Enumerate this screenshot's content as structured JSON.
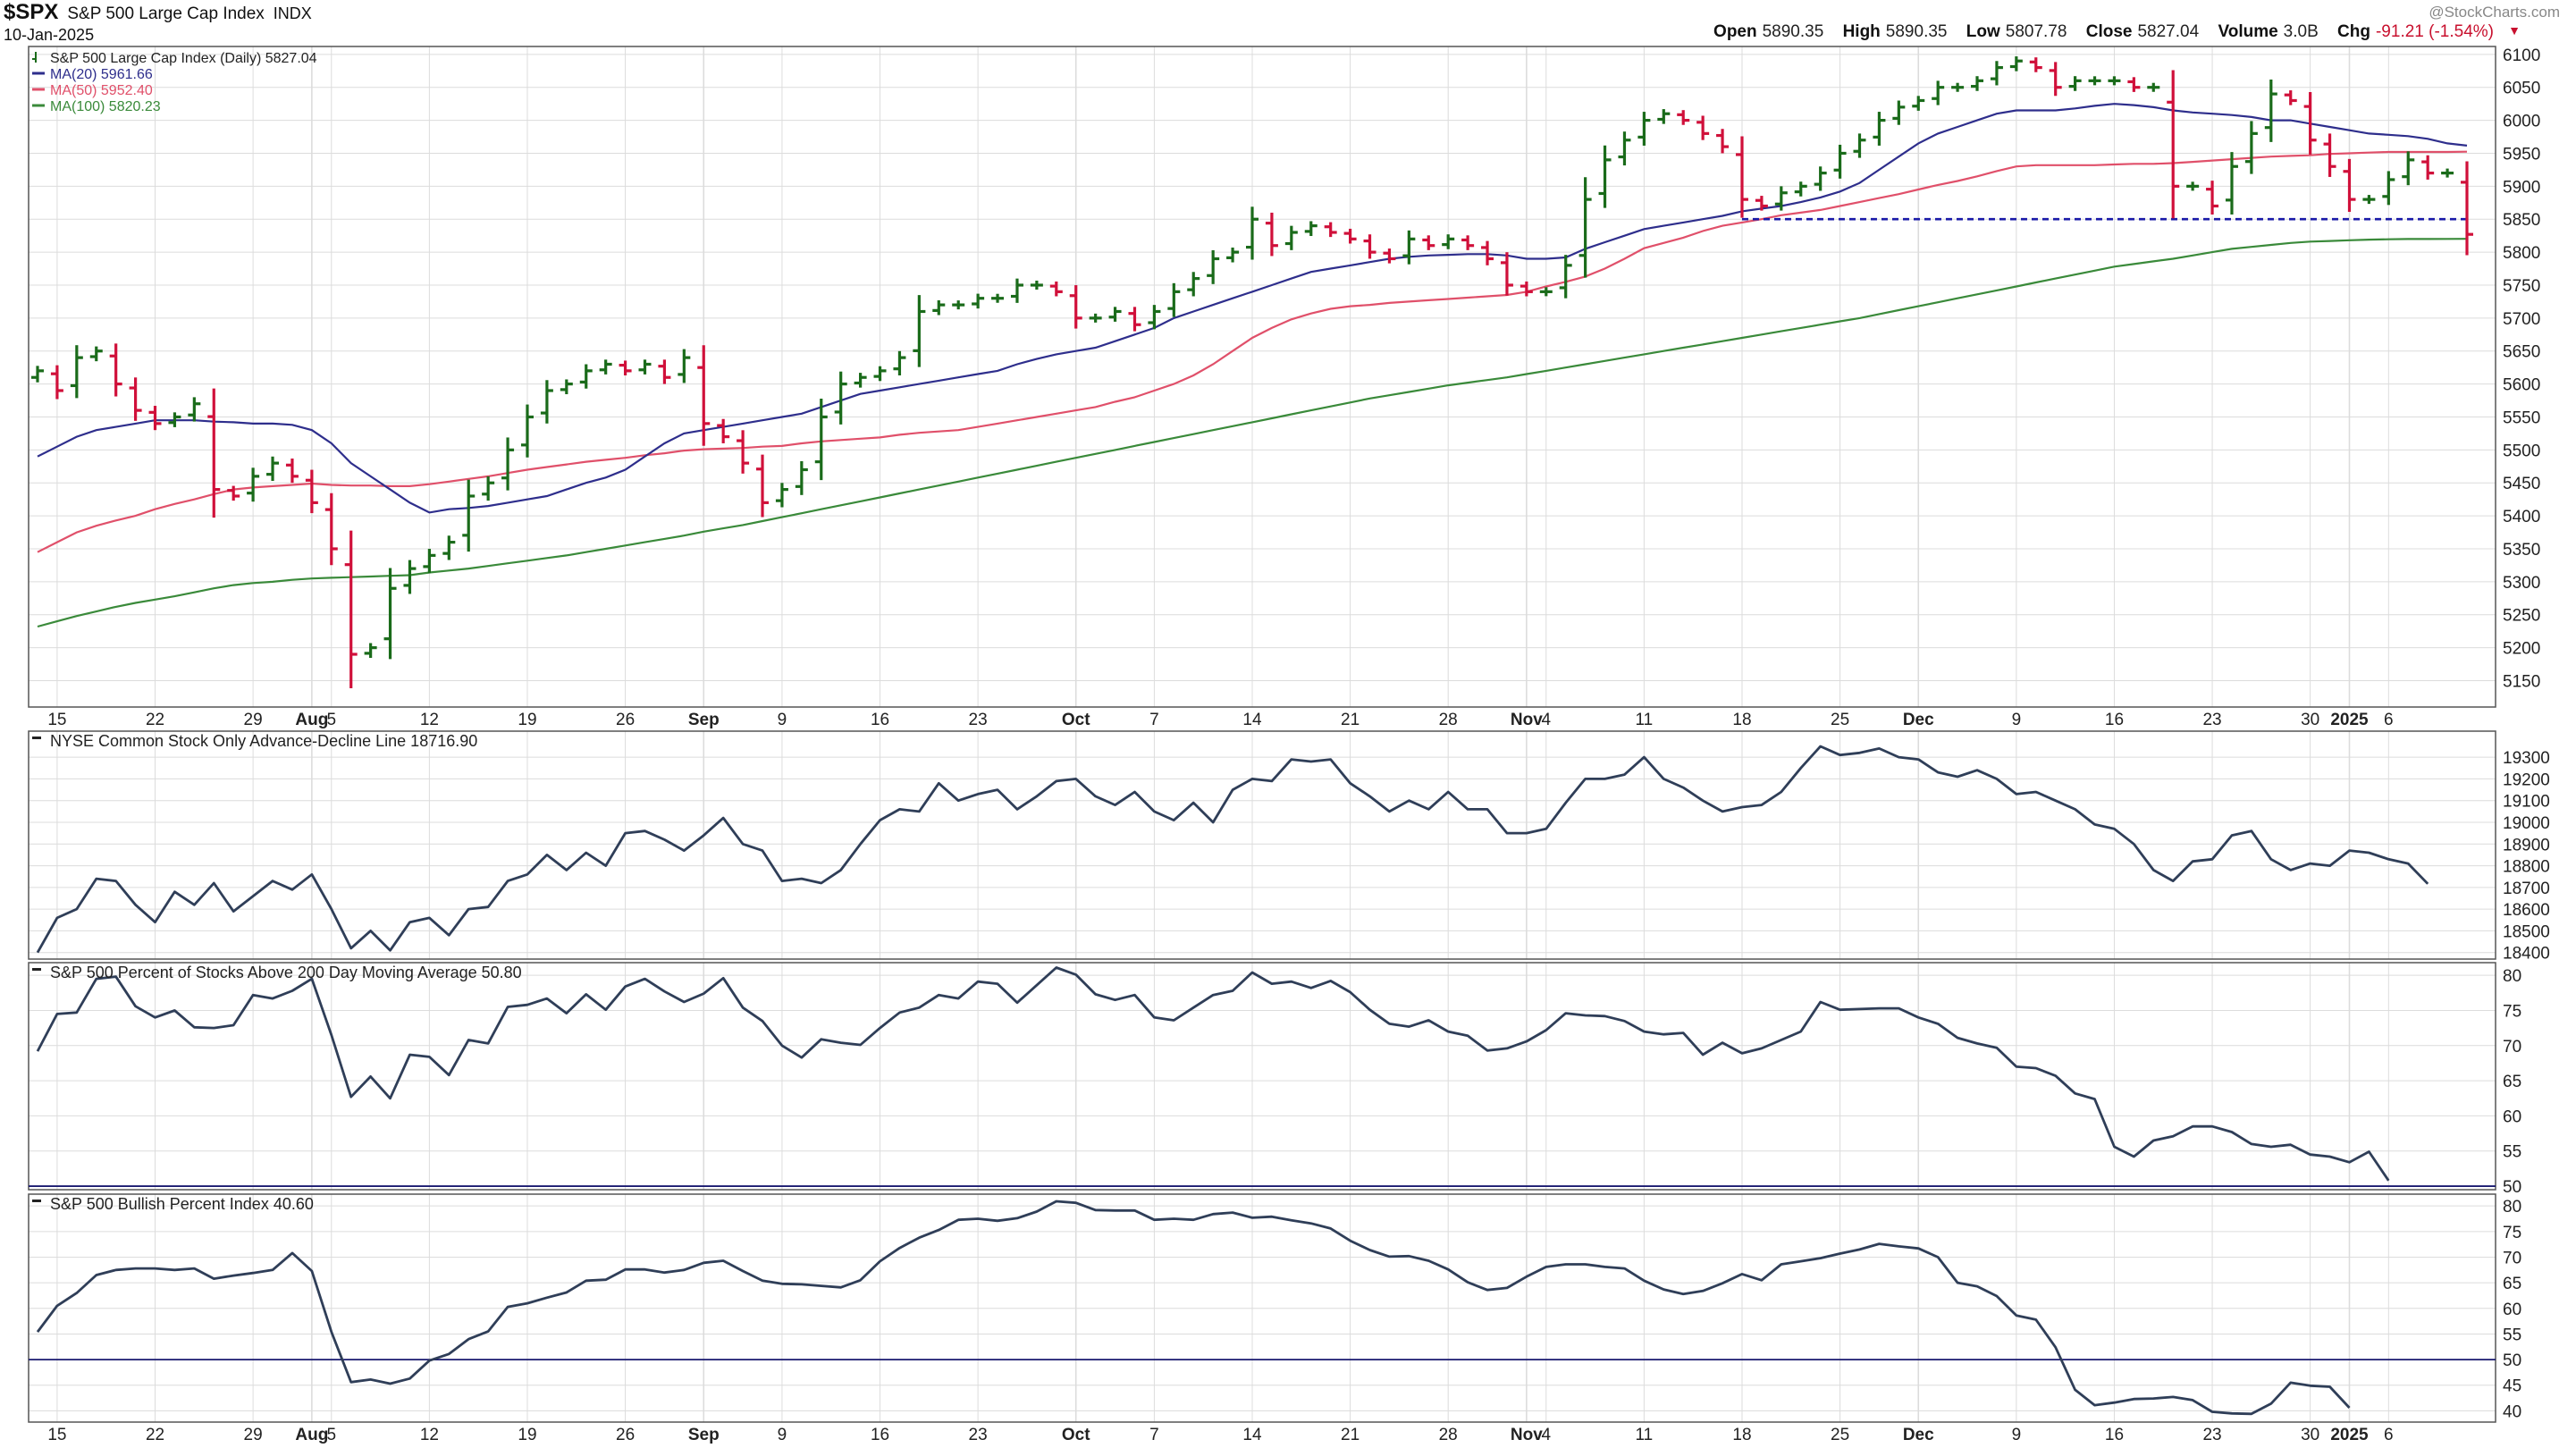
{
  "header": {
    "symbol": "$SPX",
    "name": "S&P 500 Large Cap Index",
    "exchange": "INDX",
    "date": "10-Jan-2025",
    "brand": "@StockCharts.com",
    "open_label": "Open",
    "open": "5890.35",
    "high_label": "High",
    "high": "5890.35",
    "low_label": "Low",
    "low": "5807.78",
    "close_label": "Close",
    "close": "5827.04",
    "volume_label": "Volume",
    "volume": "3.0B",
    "chg_label": "Chg",
    "chg": "-91.21 (-1.54%)",
    "chg_arrow": "▼"
  },
  "colors": {
    "up": "#1a6b1a",
    "down": "#d0103a",
    "ma20": "#2e2e8c",
    "ma50": "#e0506a",
    "ma100": "#3a8a3a",
    "indicator": "#2f3e58",
    "support": "#1a1aa8",
    "grid": "#dcdcdc"
  },
  "x_axis_ticks": [
    {
      "label": "15",
      "i": 1
    },
    {
      "label": "22",
      "i": 6
    },
    {
      "label": "29",
      "i": 11
    },
    {
      "label": "Aug",
      "i": 14,
      "major": true
    },
    {
      "label": "5",
      "i": 15
    },
    {
      "label": "12",
      "i": 20
    },
    {
      "label": "19",
      "i": 25
    },
    {
      "label": "26",
      "i": 30
    },
    {
      "label": "Sep",
      "i": 34,
      "major": true
    },
    {
      "label": "9",
      "i": 38
    },
    {
      "label": "16",
      "i": 43
    },
    {
      "label": "23",
      "i": 48
    },
    {
      "label": "Oct",
      "i": 53,
      "major": true
    },
    {
      "label": "7",
      "i": 57
    },
    {
      "label": "14",
      "i": 62
    },
    {
      "label": "21",
      "i": 67
    },
    {
      "label": "28",
      "i": 72
    },
    {
      "label": "Nov",
      "i": 76,
      "major": true
    },
    {
      "label": "4",
      "i": 77
    },
    {
      "label": "11",
      "i": 82
    },
    {
      "label": "18",
      "i": 87
    },
    {
      "label": "25",
      "i": 92
    },
    {
      "label": "Dec",
      "i": 96,
      "major": true
    },
    {
      "label": "9",
      "i": 101
    },
    {
      "label": "16",
      "i": 106
    },
    {
      "label": "23",
      "i": 111
    },
    {
      "label": "30",
      "i": 116
    },
    {
      "label": "2025",
      "i": 118,
      "major": true
    },
    {
      "label": "6",
      "i": 120
    }
  ],
  "chart_data": [
    {
      "type": "ohlc",
      "title": "S&P 500 Large Cap Index (Daily) 5827.04",
      "legend": [
        {
          "name": "S&P 500 Large Cap Index (Daily) 5827.04",
          "color": "#1a6b1a",
          "style": "bar"
        },
        {
          "name": "MA(20) 5961.66",
          "color": "#2e2e8c"
        },
        {
          "name": "MA(50) 5952.40",
          "color": "#e0506a"
        },
        {
          "name": "MA(100) 5820.23",
          "color": "#3a8a3a"
        }
      ],
      "ylim": [
        5110,
        6112
      ],
      "yticks": [
        5150,
        5200,
        5250,
        5300,
        5350,
        5400,
        5450,
        5500,
        5550,
        5600,
        5650,
        5700,
        5750,
        5800,
        5850,
        5900,
        5950,
        6000,
        6050,
        6100
      ],
      "support_level": 5850,
      "support_range": [
        87,
        124
      ],
      "close": [
        5620,
        5590,
        5640,
        5650,
        5600,
        5560,
        5540,
        5550,
        5570,
        5440,
        5430,
        5460,
        5480,
        5460,
        5420,
        5350,
        5190,
        5200,
        5290,
        5320,
        5340,
        5360,
        5430,
        5450,
        5500,
        5550,
        5590,
        5600,
        5620,
        5630,
        5620,
        5630,
        5610,
        5640,
        5540,
        5520,
        5480,
        5420,
        5440,
        5470,
        5550,
        5600,
        5610,
        5620,
        5640,
        5710,
        5720,
        5720,
        5730,
        5730,
        5750,
        5750,
        5740,
        5700,
        5700,
        5710,
        5690,
        5710,
        5740,
        5760,
        5790,
        5800,
        5850,
        5810,
        5830,
        5840,
        5830,
        5820,
        5800,
        5790,
        5820,
        5810,
        5820,
        5810,
        5790,
        5750,
        5740,
        5740,
        5780,
        5880,
        5940,
        5970,
        6000,
        6010,
        6000,
        5980,
        5960,
        5880,
        5870,
        5890,
        5900,
        5920,
        5950,
        5970,
        6000,
        6020,
        6030,
        6050,
        6050,
        6060,
        6080,
        6090,
        6080,
        6050,
        6060,
        6060,
        6060,
        6050,
        6050,
        5900,
        5900,
        5870,
        5930,
        5980,
        6040,
        6030,
        5970,
        5930,
        5880,
        5880,
        5910,
        5940,
        5920,
        5920,
        5827
      ],
      "ma20": [
        5490,
        5505,
        5520,
        5530,
        5535,
        5540,
        5545,
        5545,
        5545,
        5543,
        5542,
        5540,
        5540,
        5538,
        5530,
        5510,
        5480,
        5460,
        5440,
        5420,
        5405,
        5410,
        5412,
        5415,
        5420,
        5425,
        5430,
        5440,
        5450,
        5458,
        5470,
        5490,
        5510,
        5525,
        5530,
        5535,
        5540,
        5545,
        5550,
        5555,
        5565,
        5575,
        5585,
        5590,
        5595,
        5600,
        5605,
        5610,
        5615,
        5620,
        5630,
        5638,
        5645,
        5650,
        5655,
        5665,
        5675,
        5685,
        5700,
        5710,
        5720,
        5730,
        5740,
        5750,
        5760,
        5770,
        5775,
        5780,
        5785,
        5790,
        5793,
        5795,
        5796,
        5797,
        5797,
        5795,
        5790,
        5790,
        5792,
        5805,
        5815,
        5825,
        5835,
        5840,
        5845,
        5850,
        5855,
        5862,
        5866,
        5870,
        5876,
        5883,
        5892,
        5905,
        5925,
        5945,
        5965,
        5980,
        5990,
        6000,
        6010,
        6015,
        6015,
        6015,
        6018,
        6022,
        6025,
        6023,
        6020,
        6015,
        6012,
        6010,
        6008,
        6005,
        6000,
        6000,
        5995,
        5990,
        5985,
        5980,
        5978,
        5976,
        5972,
        5965,
        5961.66
      ],
      "ma50": [
        5345,
        5360,
        5375,
        5385,
        5393,
        5400,
        5410,
        5418,
        5425,
        5433,
        5440,
        5443,
        5445,
        5447,
        5449,
        5447,
        5446,
        5446,
        5445,
        5445,
        5448,
        5452,
        5456,
        5460,
        5465,
        5470,
        5474,
        5478,
        5482,
        5485,
        5488,
        5492,
        5495,
        5499,
        5501,
        5502,
        5503,
        5505,
        5506,
        5510,
        5513,
        5515,
        5517,
        5519,
        5523,
        5526,
        5528,
        5530,
        5535,
        5540,
        5545,
        5550,
        5555,
        5560,
        5565,
        5573,
        5580,
        5590,
        5600,
        5613,
        5630,
        5650,
        5670,
        5685,
        5698,
        5707,
        5714,
        5718,
        5720,
        5723,
        5725,
        5727,
        5729,
        5731,
        5733,
        5735,
        5740,
        5748,
        5755,
        5763,
        5775,
        5790,
        5806,
        5814,
        5822,
        5832,
        5840,
        5845,
        5850,
        5856,
        5860,
        5864,
        5870,
        5876,
        5882,
        5888,
        5895,
        5902,
        5908,
        5915,
        5923,
        5930,
        5932,
        5932,
        5932,
        5932,
        5933,
        5934,
        5934,
        5935,
        5937,
        5939,
        5941,
        5943,
        5945,
        5946,
        5947,
        5949,
        5950,
        5951,
        5952,
        5952,
        5952,
        5952,
        5952.4
      ],
      "ma100": [
        5232,
        5240,
        5248,
        5255,
        5262,
        5268,
        5273,
        5278,
        5284,
        5290,
        5295,
        5298,
        5300,
        5303,
        5305,
        5306,
        5307,
        5308,
        5309,
        5310,
        5314,
        5317,
        5320,
        5324,
        5328,
        5332,
        5336,
        5340,
        5345,
        5350,
        5355,
        5360,
        5365,
        5370,
        5376,
        5381,
        5386,
        5392,
        5398,
        5404,
        5410,
        5416,
        5422,
        5428,
        5434,
        5440,
        5446,
        5452,
        5458,
        5464,
        5470,
        5476,
        5482,
        5488,
        5494,
        5500,
        5506,
        5512,
        5518,
        5524,
        5530,
        5536,
        5542,
        5548,
        5554,
        5560,
        5566,
        5572,
        5578,
        5583,
        5588,
        5593,
        5598,
        5602,
        5606,
        5610,
        5615,
        5620,
        5625,
        5630,
        5635,
        5640,
        5645,
        5650,
        5655,
        5660,
        5665,
        5670,
        5675,
        5680,
        5685,
        5690,
        5695,
        5700,
        5706,
        5712,
        5718,
        5724,
        5730,
        5736,
        5742,
        5748,
        5754,
        5760,
        5766,
        5772,
        5778,
        5782,
        5786,
        5790,
        5795,
        5800,
        5805,
        5808,
        5811,
        5814,
        5816,
        5817,
        5818,
        5819,
        5819.5,
        5820,
        5820,
        5820.1,
        5820.23
      ]
    },
    {
      "type": "line",
      "title": "NYSE Common Stock Only Advance-Decline Line 18716.90",
      "ylim": [
        18370,
        19420
      ],
      "yticks": [
        18400,
        18500,
        18600,
        18700,
        18800,
        18900,
        19000,
        19100,
        19200,
        19300
      ],
      "values": [
        18400,
        18560,
        18600,
        18740,
        18730,
        18620,
        18540,
        18680,
        18620,
        18720,
        18590,
        18660,
        18730,
        18690,
        18760,
        18600,
        18420,
        18500,
        18410,
        18540,
        18560,
        18480,
        18600,
        18610,
        18730,
        18760,
        18850,
        18780,
        18860,
        18800,
        18950,
        18960,
        18920,
        18870,
        18940,
        19020,
        18900,
        18870,
        18730,
        18740,
        18720,
        18780,
        18900,
        19010,
        19060,
        19050,
        19180,
        19100,
        19130,
        19150,
        19060,
        19120,
        19190,
        19200,
        19120,
        19080,
        19140,
        19050,
        19010,
        19090,
        19000,
        19150,
        19200,
        19190,
        19290,
        19280,
        19290,
        19180,
        19120,
        19050,
        19100,
        19060,
        19140,
        19060,
        19060,
        18950,
        18950,
        18970,
        19090,
        19200,
        19200,
        19220,
        19300,
        19200,
        19160,
        19100,
        19050,
        19070,
        19080,
        19140,
        19250,
        19350,
        19310,
        19320,
        19340,
        19300,
        19290,
        19230,
        19210,
        19240,
        19200,
        19130,
        19140,
        19100,
        19060,
        18990,
        18970,
        18900,
        18780,
        18730,
        18820,
        18830,
        18940,
        18960,
        18830,
        18780,
        18810,
        18800,
        18870,
        18860,
        18830,
        18810,
        18716.9
      ]
    },
    {
      "type": "line",
      "title": "S&P 500 Percent of Stocks Above 200 Day Moving Average 50.80",
      "ylim": [
        49.5,
        81.8
      ],
      "yticks": [
        50,
        55,
        60,
        65,
        70,
        75,
        80
      ],
      "reference_line": 50,
      "values": [
        69.2,
        74.5,
        74.7,
        79.5,
        79.8,
        75.6,
        74,
        75,
        72.6,
        72.5,
        72.9,
        77.2,
        76.7,
        77.8,
        79.5,
        71.5,
        62.7,
        65.6,
        62.5,
        68.7,
        68.4,
        65.8,
        70.8,
        70.3,
        75.5,
        75.8,
        76.7,
        74.6,
        77.3,
        75.1,
        78.4,
        79.5,
        77.7,
        76.2,
        77.4,
        79.6,
        75.4,
        73.5,
        70,
        68.3,
        70.9,
        70.4,
        70.1,
        72.5,
        74.7,
        75.4,
        77.2,
        76.7,
        79.1,
        78.8,
        76.1,
        78.6,
        81.1,
        80.1,
        77.3,
        76.5,
        77.2,
        74,
        73.6,
        75.4,
        77.2,
        77.8,
        80.4,
        78.8,
        79.1,
        78.2,
        79.2,
        77.6,
        75.1,
        73.1,
        72.7,
        73.6,
        72,
        71.4,
        69.3,
        69.6,
        70.6,
        72.2,
        74.6,
        74.3,
        74.2,
        73.5,
        72,
        71.6,
        71.8,
        68.7,
        70.4,
        68.9,
        69.6,
        70.8,
        72,
        76.2,
        75.1,
        75.2,
        75.3,
        75.3,
        74,
        73.1,
        71.1,
        70.3,
        69.7,
        67,
        66.8,
        65.7,
        63.2,
        62.4,
        55.6,
        54.2,
        56.5,
        57.1,
        58.5,
        58.5,
        57.7,
        56,
        55.6,
        55.9,
        54.5,
        54.2,
        53.4,
        54.9,
        50.8
      ]
    },
    {
      "type": "line",
      "title": "S&P 500 Bullish Percent Index 40.60",
      "ylim": [
        37.8,
        82.3
      ],
      "yticks": [
        40,
        45,
        50,
        55,
        60,
        65,
        70,
        75,
        80
      ],
      "reference_line": 50,
      "values": [
        55.4,
        60.5,
        63,
        66.5,
        67.5,
        67.8,
        67.8,
        67.5,
        67.8,
        65.8,
        66.4,
        66.9,
        67.5,
        70.8,
        67.3,
        55.4,
        45.6,
        46.1,
        45.3,
        46.3,
        49.8,
        51.1,
        54,
        55.5,
        60.3,
        61,
        62.1,
        63.1,
        65.4,
        65.6,
        67.6,
        67.6,
        67,
        67.5,
        68.9,
        69.3,
        67.3,
        65.4,
        64.8,
        64.7,
        64.4,
        64.1,
        65.5,
        69.2,
        71.8,
        73.8,
        75.3,
        77.3,
        77.5,
        77.1,
        77.6,
        78.9,
        80.9,
        80.6,
        79.2,
        79.1,
        79.1,
        77.3,
        77.5,
        77.3,
        78.4,
        78.7,
        77.7,
        77.9,
        77.2,
        76.6,
        75.6,
        73.2,
        71.4,
        70.1,
        70.2,
        69.3,
        67.6,
        65.1,
        63.6,
        64,
        66.2,
        68.1,
        68.6,
        68.6,
        68.1,
        67.8,
        65.4,
        63.7,
        62.8,
        63.4,
        64.9,
        66.7,
        65.5,
        68.6,
        69.2,
        69.8,
        70.7,
        71.5,
        72.6,
        72.1,
        71.7,
        70,
        65,
        64.3,
        62.4,
        58.6,
        57.8,
        52.4,
        44.1,
        41.1,
        41.6,
        42.3,
        42.4,
        42.7,
        42.1,
        39.8,
        39.5,
        39.4,
        41.4,
        45.5,
        44.9,
        44.7,
        40.6
      ]
    }
  ]
}
